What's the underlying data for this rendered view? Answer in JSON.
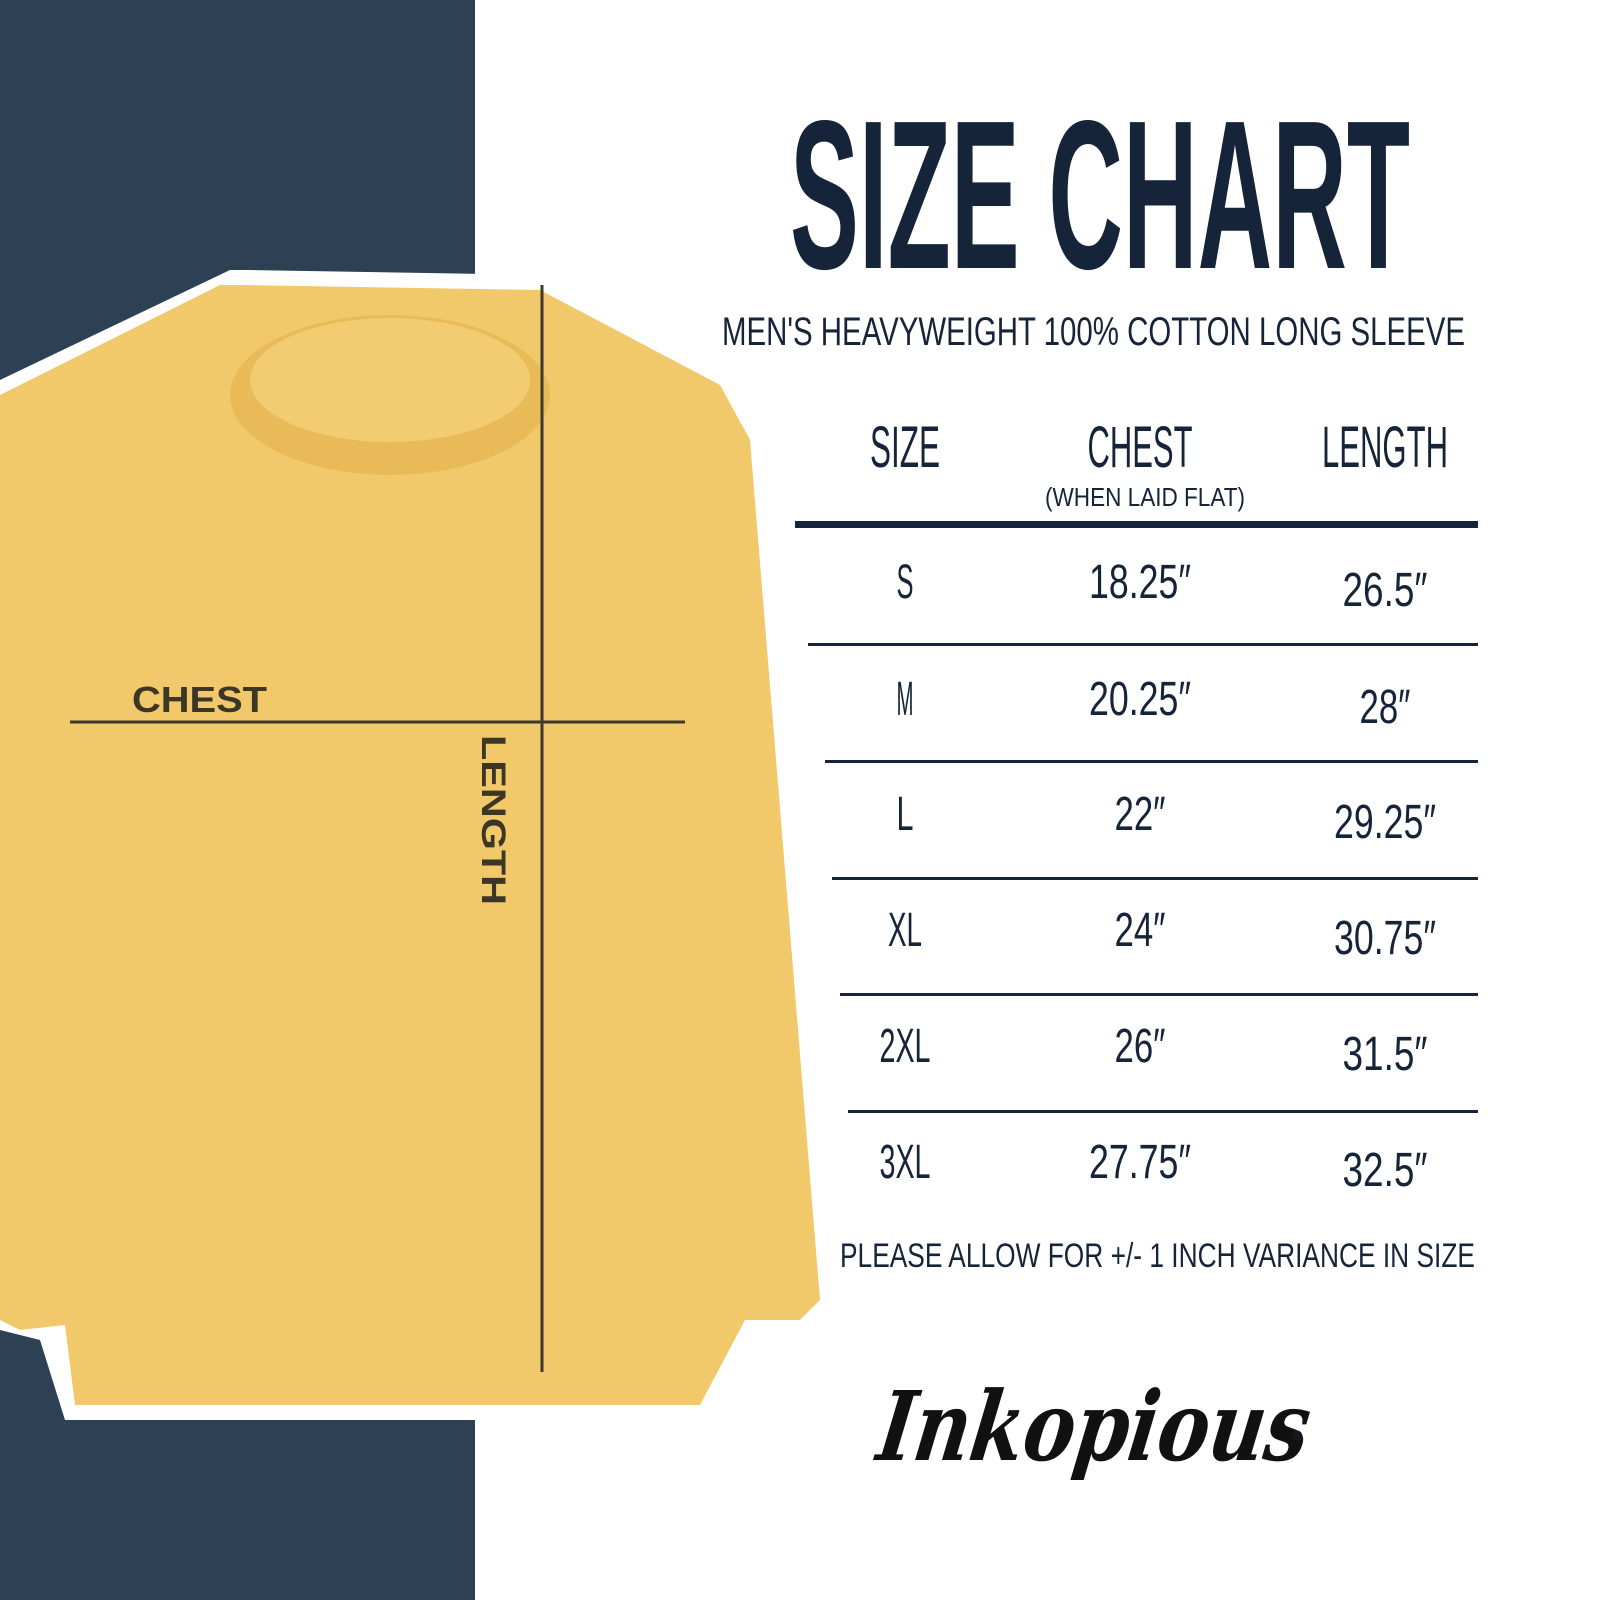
{
  "title": "SIZE CHART",
  "subtitle": "MEN'S HEAVYWEIGHT 100% COTTON LONG SLEEVE",
  "colors": {
    "navy": "#2e4154",
    "text": "#16243a",
    "shirt": "#f1c86a"
  },
  "diagram": {
    "chest_label": "CHEST",
    "length_label": "LENGTH"
  },
  "table": {
    "headers": [
      "SIZE",
      "CHEST",
      "LENGTH"
    ],
    "chest_note": "(WHEN LAID FLAT)",
    "rows": [
      [
        "S",
        "18.25″",
        "26.5″"
      ],
      [
        "M",
        "20.25″",
        "28″"
      ],
      [
        "L",
        "22″",
        "29.25″"
      ],
      [
        "XL",
        "24″",
        "30.75″"
      ],
      [
        "2XL",
        "26″",
        "31.5″"
      ],
      [
        "3XL",
        "27.75″",
        "32.5″"
      ]
    ]
  },
  "note": "PLEASE ALLOW FOR +/- 1 INCH VARIANCE IN SIZE",
  "logo": {
    "text": "Inkopious"
  }
}
